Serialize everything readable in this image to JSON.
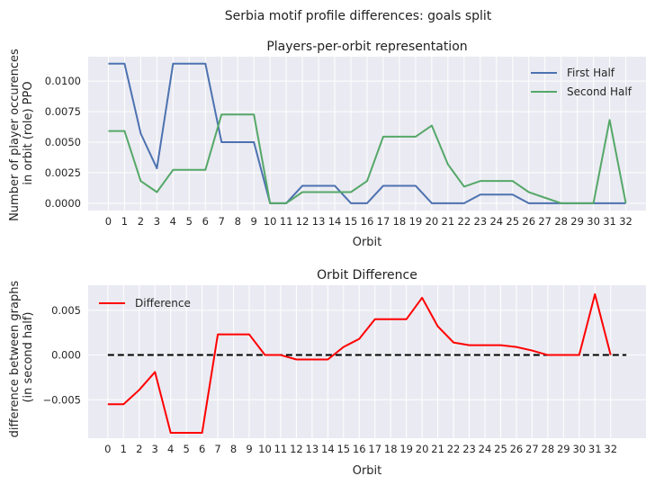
{
  "figure": {
    "suptitle": "Serbia motif profile differences: goals split"
  },
  "colors": {
    "first": "#4c72b0",
    "second": "#55a868",
    "diff": "#ff0000",
    "zero": "#000000",
    "bg": "#eaeaf2",
    "grid": "#ffffff"
  },
  "chart_data": [
    {
      "type": "line",
      "title": "Players-per-orbit representation",
      "xlabel": "Orbit",
      "ylabel": [
        "Number of player occurences",
        "in orbit (role) PPO"
      ],
      "x": [
        0,
        1,
        2,
        3,
        4,
        5,
        6,
        7,
        8,
        9,
        10,
        11,
        12,
        13,
        14,
        15,
        16,
        17,
        18,
        19,
        20,
        21,
        22,
        23,
        24,
        25,
        26,
        27,
        28,
        29,
        30,
        31,
        32
      ],
      "xticks": [
        "0",
        "1",
        "2",
        "3",
        "4",
        "5",
        "6",
        "7",
        "8",
        "9",
        "10",
        "11",
        "12",
        "13",
        "14",
        "15",
        "16",
        "17",
        "18",
        "19",
        "20",
        "21",
        "22",
        "23",
        "24",
        "25",
        "26",
        "27",
        "28",
        "29",
        "30",
        "31",
        "32"
      ],
      "yticks": [
        "0.0000",
        "0.0025",
        "0.0050",
        "0.0075",
        "0.0100"
      ],
      "ytick_values": [
        0,
        0.0025,
        0.005,
        0.0075,
        0.01
      ],
      "xlim": [
        -1.25,
        33.25
      ],
      "ylim": [
        -0.0006,
        0.012
      ],
      "grid": true,
      "legend_position": "upper right",
      "series": [
        {
          "name": "First Half",
          "color": "#4c72b0",
          "values": [
            0.01143,
            0.01143,
            0.00571,
            0.00286,
            0.01143,
            0.01143,
            0.01143,
            0.005,
            0.005,
            0.005,
            0,
            0,
            0.00143,
            0.00143,
            0.00143,
            0,
            0,
            0.00143,
            0.00143,
            0.00143,
            0,
            0,
            0,
            0.00071,
            0.00071,
            0.00071,
            0,
            0,
            0,
            0,
            0,
            0,
            0
          ]
        },
        {
          "name": "Second Half",
          "color": "#55a868",
          "values": [
            0.00591,
            0.00591,
            0.00182,
            0.00091,
            0.00273,
            0.00273,
            0.00273,
            0.00727,
            0.00727,
            0.00727,
            0,
            0,
            0.00091,
            0.00091,
            0.00091,
            0.00091,
            0.00182,
            0.00545,
            0.00545,
            0.00545,
            0.00636,
            0.00318,
            0.00136,
            0.00182,
            0.00182,
            0.00182,
            0.00091,
            0.00045,
            0,
            0,
            0,
            0.00682,
            0
          ]
        }
      ]
    },
    {
      "type": "line",
      "title": "Orbit Difference",
      "xlabel": "Orbit",
      "ylabel": [
        "difference between graphs",
        "(in second half)"
      ],
      "x": [
        0,
        1,
        2,
        3,
        4,
        5,
        6,
        7,
        8,
        9,
        10,
        11,
        12,
        13,
        14,
        15,
        16,
        17,
        18,
        19,
        20,
        21,
        22,
        23,
        24,
        25,
        26,
        27,
        28,
        29,
        30,
        31,
        32
      ],
      "xticks": [
        "0",
        "1",
        "2",
        "3",
        "4",
        "5",
        "6",
        "7",
        "8",
        "9",
        "10",
        "11",
        "12",
        "13",
        "14",
        "15",
        "16",
        "17",
        "18",
        "19",
        "20",
        "21",
        "22",
        "23",
        "24",
        "25",
        "26",
        "27",
        "28",
        "29",
        "30",
        "31",
        "32"
      ],
      "yticks": [
        "−0.005",
        "0.000",
        "0.005"
      ],
      "ytick_values": [
        -0.005,
        0,
        0.005
      ],
      "xlim": [
        -1.25,
        34.25
      ],
      "ylim": [
        -0.0093,
        0.0078
      ],
      "grid": true,
      "legend_position": "upper left",
      "zero_line": {
        "x": [
          0,
          33
        ],
        "y": 0,
        "style": "dashed"
      },
      "series": [
        {
          "name": "Difference",
          "color": "#ff0000",
          "values": [
            -0.0055,
            -0.0055,
            -0.0039,
            -0.0019,
            -0.0087,
            -0.0087,
            -0.0087,
            0.0023,
            0.0023,
            0.0023,
            0,
            0,
            -0.0005,
            -0.0005,
            -0.0005,
            0.0009,
            0.0018,
            0.004,
            0.004,
            0.004,
            0.0064,
            0.0032,
            0.0014,
            0.0011,
            0.0011,
            0.0011,
            0.0009,
            0.0005,
            0,
            0,
            0,
            0.0068,
            0
          ]
        }
      ]
    }
  ]
}
